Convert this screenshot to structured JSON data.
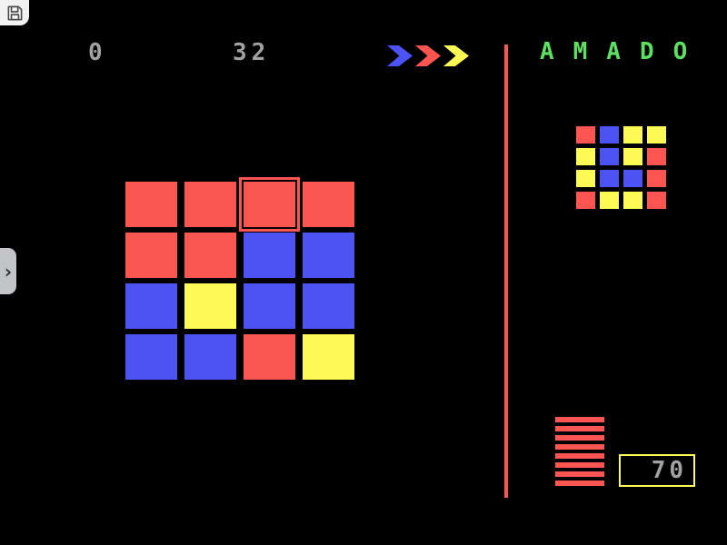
{
  "window": {
    "background": "#000000"
  },
  "colors": {
    "red": "#fa5551",
    "blue": "#4d52f2",
    "yellow": "#fdfa55",
    "green": "#5ce05f",
    "gray_text": "#a2a2a2",
    "tile_bg": "#f2f2f2",
    "icon_dark": "#4a4a4a",
    "drawer_bg": "#c3c4c8",
    "divider": "#fa5551",
    "counter_border": "#fdfa55"
  },
  "toolbar": {
    "save_icon": "floppy-disk"
  },
  "hud": {
    "moves": "0",
    "score": "32",
    "direction_arrows": [
      "blue",
      "red",
      "yellow"
    ]
  },
  "sidebar_handle": {
    "chevron": "›"
  },
  "title": {
    "text": "AMADO"
  },
  "board": {
    "rows": 4,
    "cols": 4,
    "cells": [
      [
        "red",
        "red",
        "red",
        "red"
      ],
      [
        "red",
        "red",
        "blue",
        "blue"
      ],
      [
        "blue",
        "yellow",
        "blue",
        "blue"
      ],
      [
        "blue",
        "blue",
        "red",
        "yellow"
      ]
    ],
    "cursor": {
      "row": 0,
      "col": 2
    }
  },
  "target_pattern": {
    "rows": 4,
    "cols": 4,
    "cells": [
      [
        "red",
        "blue",
        "yellow",
        "yellow"
      ],
      [
        "yellow",
        "blue",
        "yellow",
        "red"
      ],
      [
        "yellow",
        "blue",
        "blue",
        "red"
      ],
      [
        "red",
        "yellow",
        "yellow",
        "red"
      ]
    ]
  },
  "level_meter": {
    "stripes": 8,
    "color": "red"
  },
  "counter": {
    "value": "70"
  }
}
